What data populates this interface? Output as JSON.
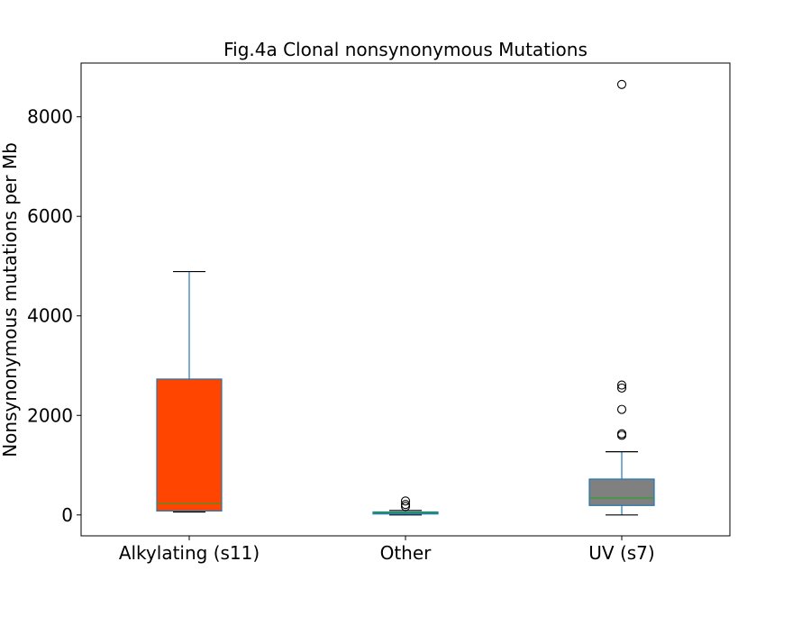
{
  "chart_data": {
    "type": "box",
    "title": "Fig.4a Clonal nonsynonymous Mutations",
    "xlabel": "",
    "ylabel": "Nonsynonymous mutations per Mb",
    "ylim": [
      -420,
      9080
    ],
    "yticks": [
      0,
      2000,
      4000,
      6000,
      8000
    ],
    "yticklabels": [
      "0",
      "2000",
      "4000",
      "6000",
      "8000"
    ],
    "grid": false,
    "legend": "none",
    "categories": [
      "Alkylating (s11)",
      "Other",
      "UV (s7)"
    ],
    "boxes": [
      {
        "category": "Alkylating (s11)",
        "whisker_low": 60,
        "q1": 80,
        "median": 230,
        "q3": 2730,
        "whisker_high": 4890,
        "outliers": [],
        "fill": "#ff4500"
      },
      {
        "category": "Other",
        "whisker_low": 0,
        "q1": 20,
        "median": 40,
        "q3": 60,
        "whisker_high": 90,
        "outliers": [
          170,
          210,
          280
        ],
        "fill": "#2ca089"
      },
      {
        "category": "UV (s7)",
        "whisker_low": 0,
        "q1": 190,
        "median": 340,
        "q3": 720,
        "whisker_high": 1270,
        "outliers": [
          1600,
          1630,
          2120,
          2550,
          2610,
          8650
        ],
        "fill": "#808080"
      }
    ],
    "colors": {
      "box_edge": "#1f77b4",
      "median": "#2ca02c",
      "cap": "#000000"
    }
  }
}
